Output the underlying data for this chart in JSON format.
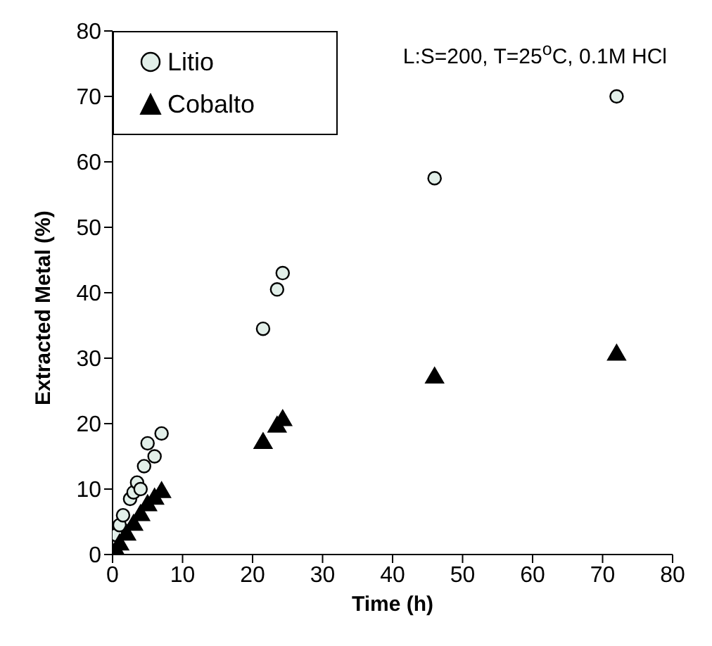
{
  "chart_data": {
    "type": "scatter",
    "xlabel": "Time (h)",
    "ylabel": "Extracted Metal (%)",
    "xlim": [
      0,
      80
    ],
    "xticks": [
      0,
      10,
      20,
      30,
      40,
      50,
      60,
      70,
      80
    ],
    "ylim": [
      0,
      80
    ],
    "yticks": [
      0,
      10,
      20,
      30,
      40,
      50,
      60,
      70,
      80
    ],
    "grid": false,
    "legend": "top left",
    "annotations": [
      "L:S=200, T=25$^{o}$C, 0.1M HCl"
    ],
    "series": [
      {
        "name": "Litio",
        "color": "#e2efe9",
        "marker": "circle",
        "x": [
          0.5,
          1,
          1.5,
          2.5,
          3,
          3.5,
          4,
          4.5,
          5,
          6,
          7,
          21.5,
          23.5,
          24.3,
          46,
          72
        ],
        "values": [
          3,
          4.5,
          6,
          8.5,
          9.5,
          11,
          10,
          13.5,
          17,
          15,
          18.5,
          34.5,
          40.5,
          43,
          57.5,
          70
        ]
      },
      {
        "name": "Cobalto",
        "color": "#000000",
        "marker": "triangle",
        "x": [
          0.5,
          1,
          1.5,
          2,
          3,
          3.5,
          4,
          5,
          6,
          7,
          21.5,
          23.5,
          24.3,
          46,
          72
        ],
        "values": [
          0.5,
          1.5,
          null,
          3,
          4.5,
          null,
          6,
          7.5,
          8.5,
          9.5,
          17,
          19.5,
          20.5,
          27,
          30.5
        ]
      }
    ]
  }
}
